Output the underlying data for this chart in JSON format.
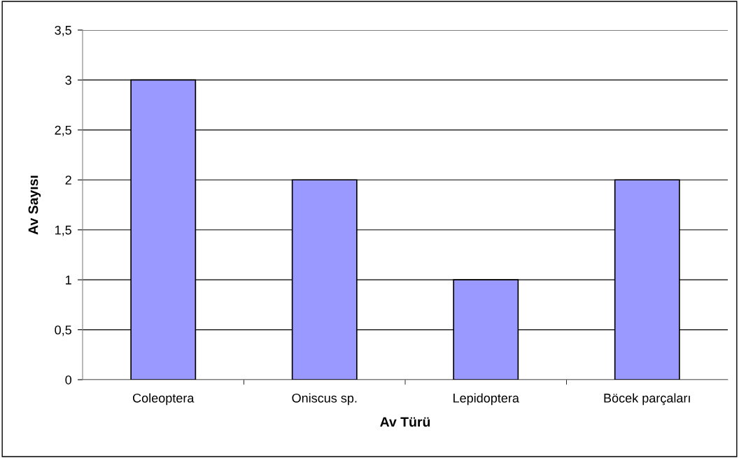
{
  "chart_data": {
    "type": "bar",
    "xlabel": "Av Türü",
    "ylabel": "Av Sayısı",
    "categories": [
      "Coleoptera",
      "Oniscus sp.",
      "Lepidoptera",
      "Böcek parçaları"
    ],
    "values": [
      3,
      2,
      1,
      2
    ],
    "color": "#9999ff",
    "ylim": [
      0,
      3.5
    ],
    "yticks": [
      0,
      {
        "value": 0.5,
        "label": "0,5"
      },
      1,
      {
        "value": 1.5,
        "label": "1,5"
      },
      2,
      {
        "value": 2.5,
        "label": "2,5"
      },
      3,
      {
        "value": 3.5,
        "label": "3,5"
      }
    ],
    "grid": "y"
  }
}
